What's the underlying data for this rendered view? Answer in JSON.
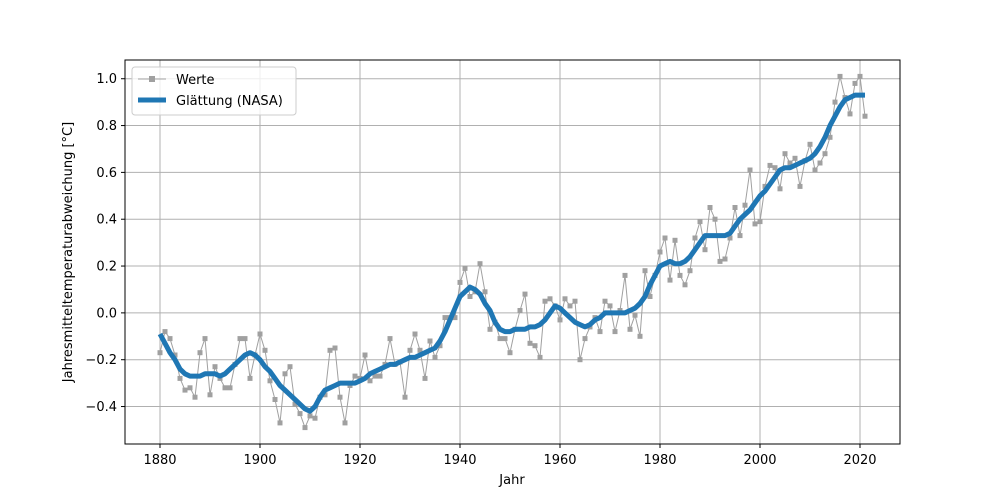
{
  "chart_data": {
    "type": "line",
    "title": "",
    "xlabel": "Jahr",
    "ylabel": "Jahresmitteltemperaturabweichung [°C]",
    "xlim": [
      1873,
      2028
    ],
    "ylim": [
      -0.56,
      1.08
    ],
    "xticks": [
      1880,
      1900,
      1920,
      1940,
      1960,
      1980,
      2000,
      2020
    ],
    "xtick_labels": [
      "1880",
      "1900",
      "1920",
      "1940",
      "1960",
      "1980",
      "2000",
      "2020"
    ],
    "yticks": [
      -0.4,
      -0.2,
      0.0,
      0.2,
      0.4,
      0.6,
      0.8,
      1.0
    ],
    "ytick_labels": [
      "−0.4",
      "−0.2",
      "0.0",
      "0.2",
      "0.4",
      "0.6",
      "0.8",
      "1.0"
    ],
    "grid": true,
    "legend_position": "top-left",
    "x": [
      1880,
      1881,
      1882,
      1883,
      1884,
      1885,
      1886,
      1887,
      1888,
      1889,
      1890,
      1891,
      1892,
      1893,
      1894,
      1895,
      1896,
      1897,
      1898,
      1899,
      1900,
      1901,
      1902,
      1903,
      1904,
      1905,
      1906,
      1907,
      1908,
      1909,
      1910,
      1911,
      1912,
      1913,
      1914,
      1915,
      1916,
      1917,
      1918,
      1919,
      1920,
      1921,
      1922,
      1923,
      1924,
      1925,
      1926,
      1927,
      1928,
      1929,
      1930,
      1931,
      1932,
      1933,
      1934,
      1935,
      1936,
      1937,
      1938,
      1939,
      1940,
      1941,
      1942,
      1943,
      1944,
      1945,
      1946,
      1947,
      1948,
      1949,
      1950,
      1951,
      1952,
      1953,
      1954,
      1955,
      1956,
      1957,
      1958,
      1959,
      1960,
      1961,
      1962,
      1963,
      1964,
      1965,
      1966,
      1967,
      1968,
      1969,
      1970,
      1971,
      1972,
      1973,
      1974,
      1975,
      1976,
      1977,
      1978,
      1979,
      1980,
      1981,
      1982,
      1983,
      1984,
      1985,
      1986,
      1987,
      1988,
      1989,
      1990,
      1991,
      1992,
      1993,
      1994,
      1995,
      1996,
      1997,
      1998,
      1999,
      2000,
      2001,
      2002,
      2003,
      2004,
      2005,
      2006,
      2007,
      2008,
      2009,
      2010,
      2011,
      2012,
      2013,
      2014,
      2015,
      2016,
      2017,
      2018,
      2019,
      2020,
      2021
    ],
    "series": [
      {
        "name": "Werte",
        "color": "#a0a0a0",
        "values": [
          -0.17,
          -0.08,
          -0.11,
          -0.18,
          -0.28,
          -0.33,
          -0.32,
          -0.36,
          -0.17,
          -0.11,
          -0.35,
          -0.23,
          -0.28,
          -0.32,
          -0.32,
          -0.22,
          -0.11,
          -0.11,
          -0.28,
          -0.18,
          -0.09,
          -0.16,
          -0.29,
          -0.37,
          -0.47,
          -0.26,
          -0.23,
          -0.39,
          -0.43,
          -0.49,
          -0.44,
          -0.45,
          -0.36,
          -0.35,
          -0.16,
          -0.15,
          -0.36,
          -0.47,
          -0.31,
          -0.27,
          -0.28,
          -0.18,
          -0.29,
          -0.27,
          -0.27,
          -0.22,
          -0.11,
          -0.22,
          -0.21,
          -0.36,
          -0.16,
          -0.09,
          -0.16,
          -0.28,
          -0.12,
          -0.19,
          -0.14,
          -0.02,
          -0.02,
          -0.02,
          0.13,
          0.19,
          0.07,
          0.09,
          0.21,
          0.09,
          -0.07,
          -0.04,
          -0.11,
          -0.11,
          -0.17,
          -0.07,
          0.01,
          0.08,
          -0.13,
          -0.14,
          -0.19,
          0.05,
          0.06,
          0.03,
          -0.03,
          0.06,
          0.03,
          0.05,
          -0.2,
          -0.11,
          -0.06,
          -0.02,
          -0.08,
          0.05,
          0.03,
          -0.08,
          0.01,
          0.16,
          -0.07,
          -0.01,
          -0.1,
          0.18,
          0.07,
          0.16,
          0.26,
          0.32,
          0.14,
          0.31,
          0.16,
          0.12,
          0.18,
          0.32,
          0.39,
          0.27,
          0.45,
          0.4,
          0.22,
          0.23,
          0.32,
          0.45,
          0.33,
          0.46,
          0.61,
          0.38,
          0.39,
          0.54,
          0.63,
          0.62,
          0.53,
          0.68,
          0.64,
          0.66,
          0.54,
          0.65,
          0.72,
          0.61,
          0.64,
          0.68,
          0.75,
          0.9,
          1.01,
          0.92,
          0.85,
          0.98,
          1.01,
          0.84
        ]
      },
      {
        "name": "Glättung (NASA)",
        "color": "#1f77b4",
        "values": [
          -0.09,
          -0.13,
          -0.17,
          -0.2,
          -0.24,
          -0.26,
          -0.27,
          -0.27,
          -0.27,
          -0.26,
          -0.26,
          -0.26,
          -0.27,
          -0.26,
          -0.24,
          -0.22,
          -0.2,
          -0.18,
          -0.17,
          -0.18,
          -0.2,
          -0.23,
          -0.25,
          -0.28,
          -0.31,
          -0.33,
          -0.35,
          -0.37,
          -0.39,
          -0.41,
          -0.42,
          -0.4,
          -0.36,
          -0.33,
          -0.32,
          -0.31,
          -0.3,
          -0.3,
          -0.3,
          -0.3,
          -0.29,
          -0.28,
          -0.26,
          -0.25,
          -0.24,
          -0.23,
          -0.22,
          -0.22,
          -0.21,
          -0.2,
          -0.19,
          -0.19,
          -0.18,
          -0.17,
          -0.16,
          -0.15,
          -0.12,
          -0.08,
          -0.03,
          0.02,
          0.07,
          0.09,
          0.11,
          0.1,
          0.08,
          0.04,
          0.01,
          -0.04,
          -0.07,
          -0.08,
          -0.08,
          -0.07,
          -0.07,
          -0.07,
          -0.06,
          -0.06,
          -0.05,
          -0.03,
          0.0,
          0.03,
          0.02,
          0.0,
          -0.02,
          -0.04,
          -0.05,
          -0.06,
          -0.05,
          -0.03,
          -0.02,
          0.0,
          0.0,
          0.0,
          0.0,
          0.0,
          0.01,
          0.02,
          0.04,
          0.07,
          0.12,
          0.16,
          0.2,
          0.21,
          0.22,
          0.21,
          0.21,
          0.22,
          0.24,
          0.27,
          0.3,
          0.33,
          0.33,
          0.33,
          0.33,
          0.33,
          0.34,
          0.37,
          0.4,
          0.42,
          0.44,
          0.47,
          0.5,
          0.52,
          0.55,
          0.58,
          0.61,
          0.62,
          0.62,
          0.63,
          0.64,
          0.65,
          0.66,
          0.68,
          0.71,
          0.75,
          0.8,
          0.84,
          0.88,
          0.91,
          0.92,
          0.93,
          0.93,
          0.93
        ]
      }
    ]
  }
}
